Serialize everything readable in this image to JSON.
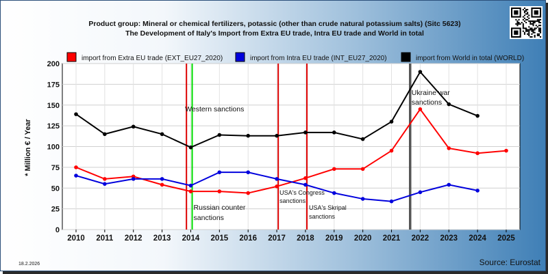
{
  "chart_data": {
    "type": "line",
    "title": "Product group: Mineral or chemical fertilizers, potassic (other than crude natural potassium salts) (Sitc 5623)",
    "subtitle": "The Development of Italy's Import from Extra EU trade, Intra EU trade and World in total",
    "ylabel": "* Million € / Year",
    "ylim": [
      0,
      200
    ],
    "yticks": [
      0,
      25,
      50,
      75,
      100,
      125,
      150,
      175,
      200
    ],
    "x": [
      2010,
      2011,
      2012,
      2013,
      2014,
      2015,
      2016,
      2017,
      2018,
      2019,
      2020,
      2021,
      2022,
      2023,
      2024,
      2025
    ],
    "series": [
      {
        "name": "import from Extra EU trade (EXT_EU27_2020)",
        "color": "#ff0000",
        "values": [
          75,
          61,
          64,
          54,
          46,
          46,
          44,
          52,
          62,
          73,
          73,
          95,
          145,
          98,
          92,
          95
        ]
      },
      {
        "name": "import from Intra EU trade (INT_EU27_2020)",
        "color": "#0000dd",
        "values": [
          65,
          55,
          61,
          61,
          53,
          69,
          69,
          61,
          54,
          44,
          37,
          34,
          45,
          54,
          47,
          null
        ]
      },
      {
        "name": "import from World in total (WORLD)",
        "color": "#000000",
        "values": [
          139,
          115,
          124,
          115,
          99,
          114,
          113,
          113,
          117,
          117,
          109,
          130,
          190,
          151,
          137,
          null
        ]
      }
    ],
    "annotations": [
      {
        "text": "Western sanctions",
        "x": 2013.85,
        "color": "#dd0000"
      },
      {
        "text": "Russian counter sanctions",
        "x": 2014.05,
        "color": "#00dd00"
      },
      {
        "text": "USA's Congress sanctions",
        "x": 2017.05,
        "color": "#dd0000"
      },
      {
        "text": "USA's Skripal sanctions",
        "x": 2018.05,
        "color": "#dd0000"
      },
      {
        "text": "Ukraine war sanctions",
        "x": 2021.65,
        "color": "#555555"
      }
    ],
    "grid": true,
    "legend": "top"
  },
  "date_label": "18.2.2026",
  "source_label": "Source: Eurostat",
  "qr_icon": "qr-code-icon"
}
